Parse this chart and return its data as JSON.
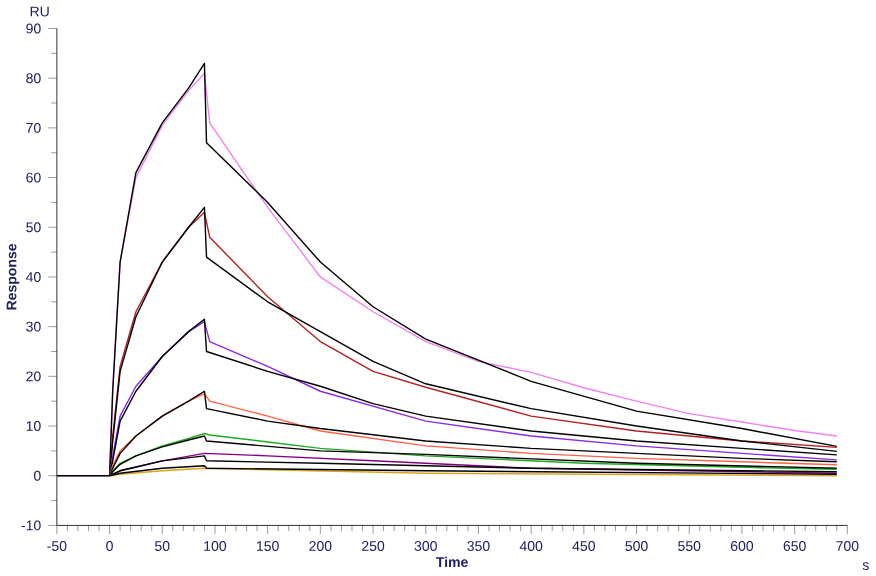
{
  "chart_data": {
    "type": "line",
    "xlabel": "Time",
    "ylabel": "Response",
    "annotations": [
      "RU",
      "s"
    ],
    "xlim": [
      -50,
      700
    ],
    "ylim": [
      -10,
      90
    ],
    "xticks": [
      -50,
      0,
      50,
      100,
      150,
      200,
      250,
      300,
      350,
      400,
      450,
      500,
      550,
      600,
      650,
      700
    ],
    "yticks": [
      -10,
      0,
      10,
      20,
      30,
      40,
      50,
      60,
      70,
      80,
      90
    ],
    "series": [
      {
        "color": "#ee82ee",
        "x": [
          -50,
          -20,
          0,
          3,
          10,
          25,
          50,
          75,
          90,
          95,
          150,
          200,
          250,
          300,
          350,
          400,
          450,
          500,
          550,
          600,
          650,
          690
        ],
        "values": [
          0,
          0,
          0,
          18,
          43,
          60,
          70.5,
          77.5,
          81,
          71,
          54,
          40,
          33,
          27,
          23,
          20.8,
          17.7,
          15,
          12.5,
          10.8,
          9.1,
          8
        ]
      },
      {
        "color": "#000000",
        "x": [
          -50,
          -20,
          0,
          3,
          10,
          25,
          50,
          75,
          90,
          92,
          150,
          200,
          250,
          300,
          400,
          500,
          600,
          690
        ],
        "values": [
          0,
          0,
          0,
          17,
          43,
          61,
          71,
          78,
          83,
          67,
          55,
          43,
          34,
          27.5,
          19,
          13,
          9.5,
          5.9
        ]
      },
      {
        "color": "#b22222",
        "x": [
          0,
          3,
          10,
          25,
          50,
          75,
          90,
          95,
          150,
          200,
          250,
          300,
          400,
          500,
          600,
          690
        ],
        "values": [
          0,
          8,
          22,
          33,
          43,
          50,
          53,
          48,
          36,
          27,
          21,
          17.8,
          12,
          9,
          7,
          5.7
        ]
      },
      {
        "color": "#000000",
        "x": [
          0,
          3,
          10,
          25,
          50,
          75,
          90,
          92,
          150,
          200,
          250,
          300,
          400,
          500,
          600,
          690
        ],
        "values": [
          0,
          7,
          21,
          32,
          43,
          50,
          54,
          44,
          35,
          29,
          23,
          18.5,
          13.5,
          10,
          7,
          4.9
        ]
      },
      {
        "color": "#8a2be2",
        "x": [
          0,
          3,
          10,
          25,
          50,
          75,
          90,
          95,
          150,
          200,
          250,
          300,
          400,
          500,
          600,
          690
        ],
        "values": [
          0,
          4,
          12,
          18,
          24,
          29,
          31,
          27,
          22,
          17,
          14,
          11,
          8,
          6,
          4.5,
          3.2
        ]
      },
      {
        "color": "#000000",
        "x": [
          0,
          3,
          10,
          25,
          50,
          75,
          90,
          92,
          150,
          200,
          250,
          300,
          400,
          500,
          600,
          690
        ],
        "values": [
          0,
          3,
          11,
          17,
          24,
          29,
          31.5,
          25,
          21,
          18,
          14.5,
          12,
          9,
          7,
          5.5,
          4.2
        ]
      },
      {
        "color": "#ff6347",
        "x": [
          0,
          3,
          10,
          25,
          50,
          75,
          90,
          95,
          150,
          200,
          300,
          400,
          500,
          600,
          690
        ],
        "values": [
          0,
          2,
          5,
          8,
          12,
          15,
          16.5,
          15,
          12,
          9,
          6,
          4.5,
          3.5,
          2.8,
          2.2
        ]
      },
      {
        "color": "#000000",
        "x": [
          0,
          3,
          10,
          25,
          50,
          75,
          90,
          92,
          150,
          200,
          300,
          400,
          500,
          600,
          690
        ],
        "values": [
          0,
          1.5,
          4.5,
          8,
          12,
          15,
          17,
          13.5,
          11,
          9.5,
          7,
          5.5,
          4.5,
          3.5,
          2.8
        ]
      },
      {
        "color": "#22aa22",
        "x": [
          0,
          3,
          10,
          25,
          50,
          75,
          90,
          95,
          150,
          200,
          300,
          450,
          600,
          690
        ],
        "values": [
          0,
          1,
          2.5,
          4,
          6,
          7.5,
          8.5,
          8.2,
          6.8,
          5.5,
          4,
          2.5,
          1.7,
          1.3
        ]
      },
      {
        "color": "#000000",
        "x": [
          0,
          3,
          10,
          25,
          50,
          75,
          90,
          92,
          200,
          300,
          500,
          690
        ],
        "values": [
          0,
          0.8,
          2.3,
          4,
          5.8,
          7.2,
          8,
          7,
          5,
          4.3,
          2.5,
          1.5
        ]
      },
      {
        "color": "#800080",
        "x": [
          0,
          10,
          50,
          90,
          150,
          250,
          400,
          690
        ],
        "values": [
          0,
          1,
          3,
          4.5,
          4,
          3,
          1.5,
          0.5
        ]
      },
      {
        "color": "#000000",
        "x": [
          0,
          10,
          50,
          90,
          92,
          200,
          400,
          690
        ],
        "values": [
          0,
          1,
          3,
          4,
          3,
          2.5,
          1.5,
          0.8
        ]
      },
      {
        "color": "#daa520",
        "x": [
          0,
          10,
          50,
          90,
          150,
          300,
          690
        ],
        "values": [
          0,
          0.3,
          1,
          1.5,
          1.2,
          0.5,
          0
        ]
      },
      {
        "color": "#000000",
        "x": [
          0,
          10,
          50,
          90,
          92,
          300,
          690
        ],
        "values": [
          0,
          0.5,
          1.5,
          2,
          1.5,
          1,
          0.3
        ]
      }
    ]
  }
}
